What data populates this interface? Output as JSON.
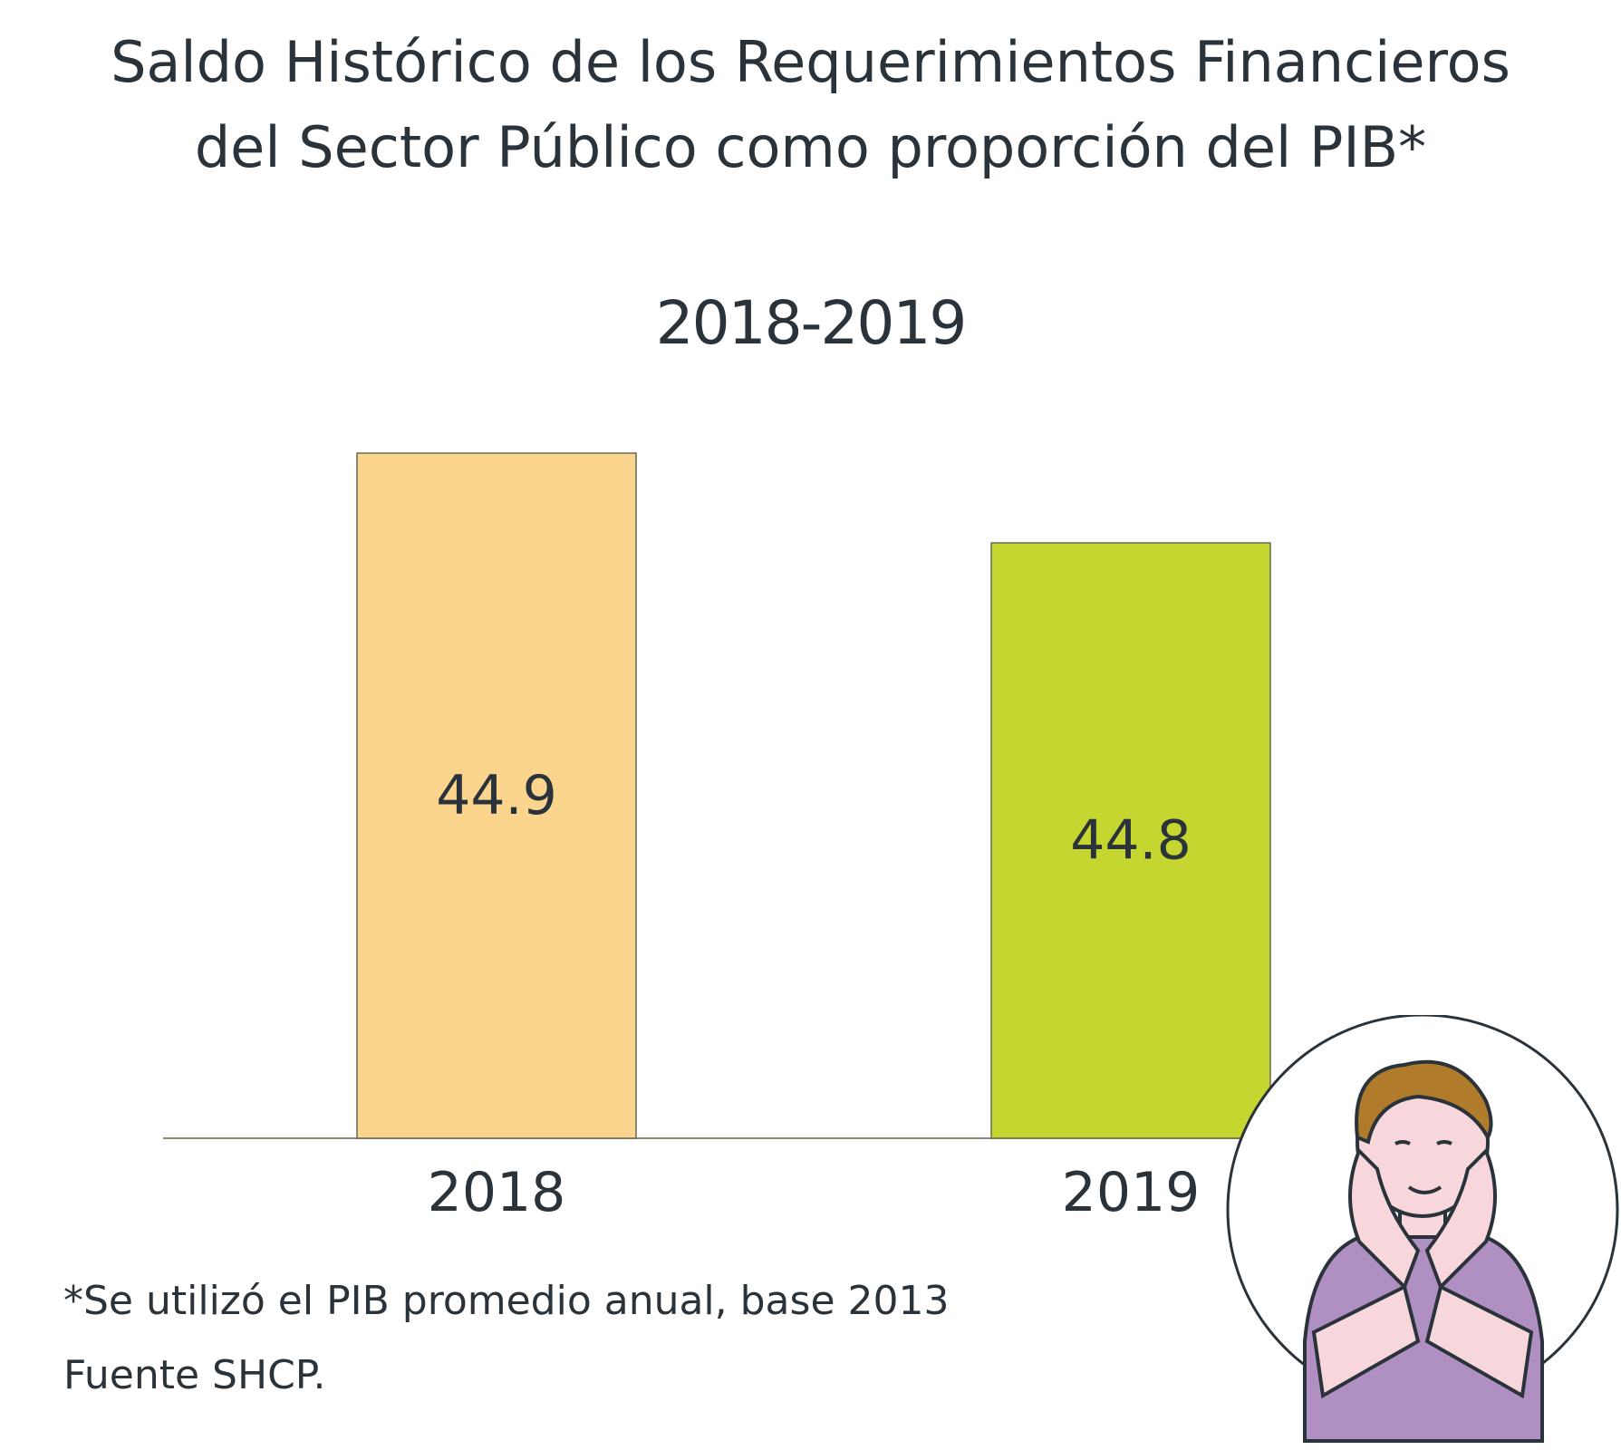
{
  "chart_data": {
    "type": "bar",
    "title": [
      "Saldo Histórico de los Requerimientos Financieros",
      "del Sector Público como proporción del PIB*"
    ],
    "subtitle": "2018-2019",
    "categories": [
      "2018",
      "2019"
    ],
    "values": [
      44.9,
      44.8
    ],
    "data_labels": [
      "44.9",
      "44.8"
    ],
    "colors": [
      "#fbd48e",
      "#c4d62f"
    ],
    "ylim": [
      0,
      44.9
    ],
    "grid": false,
    "legend": "none"
  },
  "footnotes": {
    "note": "*Se utilizó el PIB promedio anual, base 2013",
    "source": "Fuente SHCP."
  },
  "illustration": {
    "icon": "person-resting-face-on-hands-illustration"
  }
}
